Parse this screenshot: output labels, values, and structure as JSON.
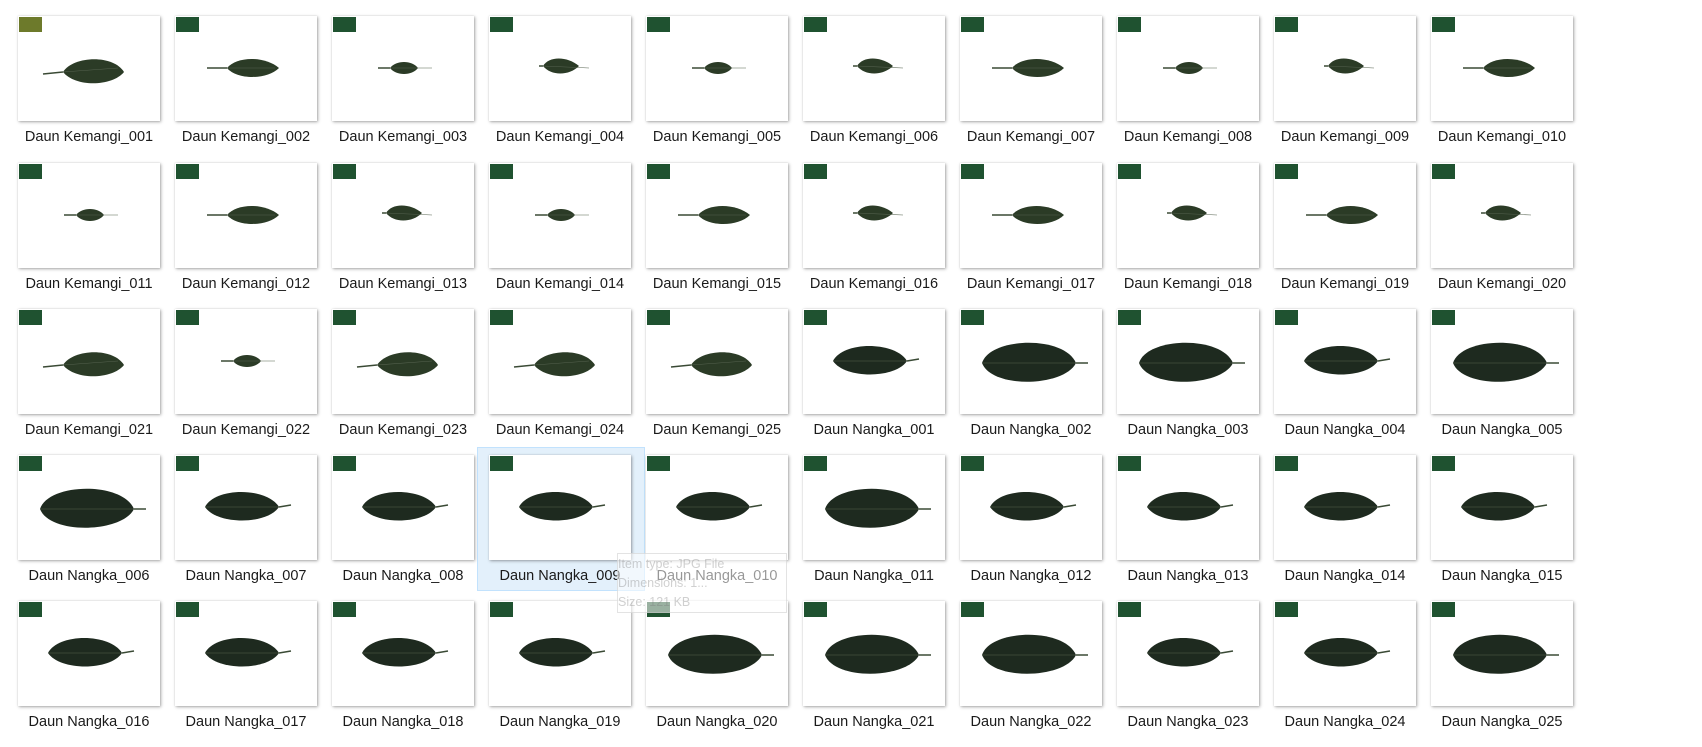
{
  "explorer": {
    "items": [
      {
        "name": "Daun Kemangi_001",
        "leaf": "k1",
        "badge": "olive"
      },
      {
        "name": "Daun Kemangi_002",
        "leaf": "k2",
        "badge": "green"
      },
      {
        "name": "Daun Kemangi_003",
        "leaf": "k3",
        "badge": "green"
      },
      {
        "name": "Daun Kemangi_004",
        "leaf": "k4",
        "badge": "green"
      },
      {
        "name": "Daun Kemangi_005",
        "leaf": "k3",
        "badge": "green"
      },
      {
        "name": "Daun Kemangi_006",
        "leaf": "k4",
        "badge": "green"
      },
      {
        "name": "Daun Kemangi_007",
        "leaf": "k2",
        "badge": "green"
      },
      {
        "name": "Daun Kemangi_008",
        "leaf": "k3",
        "badge": "green"
      },
      {
        "name": "Daun Kemangi_009",
        "leaf": "k4",
        "badge": "green"
      },
      {
        "name": "Daun Kemangi_010",
        "leaf": "k2",
        "badge": "green"
      },
      {
        "name": "Daun Kemangi_011",
        "leaf": "k3",
        "badge": "green"
      },
      {
        "name": "Daun Kemangi_012",
        "leaf": "k2",
        "badge": "green"
      },
      {
        "name": "Daun Kemangi_013",
        "leaf": "k4",
        "badge": "green"
      },
      {
        "name": "Daun Kemangi_014",
        "leaf": "k3",
        "badge": "green"
      },
      {
        "name": "Daun Kemangi_015",
        "leaf": "k2",
        "badge": "green"
      },
      {
        "name": "Daun Kemangi_016",
        "leaf": "k4",
        "badge": "green"
      },
      {
        "name": "Daun Kemangi_017",
        "leaf": "k2",
        "badge": "green"
      },
      {
        "name": "Daun Kemangi_018",
        "leaf": "k4",
        "badge": "green"
      },
      {
        "name": "Daun Kemangi_019",
        "leaf": "k2",
        "badge": "green"
      },
      {
        "name": "Daun Kemangi_020",
        "leaf": "k4",
        "badge": "green"
      },
      {
        "name": "Daun Kemangi_021",
        "leaf": "k1",
        "badge": "green"
      },
      {
        "name": "Daun Kemangi_022",
        "leaf": "k3",
        "badge": "green"
      },
      {
        "name": "Daun Kemangi_023",
        "leaf": "k1",
        "badge": "green"
      },
      {
        "name": "Daun Kemangi_024",
        "leaf": "k1",
        "badge": "green"
      },
      {
        "name": "Daun Kemangi_025",
        "leaf": "k1",
        "badge": "green"
      },
      {
        "name": "Daun Nangka_001",
        "leaf": "n1",
        "badge": "green"
      },
      {
        "name": "Daun Nangka_002",
        "leaf": "n2",
        "badge": "green"
      },
      {
        "name": "Daun Nangka_003",
        "leaf": "n2",
        "badge": "green"
      },
      {
        "name": "Daun Nangka_004",
        "leaf": "n1",
        "badge": "green"
      },
      {
        "name": "Daun Nangka_005",
        "leaf": "n2",
        "badge": "green"
      },
      {
        "name": "Daun Nangka_006",
        "leaf": "n2",
        "badge": "green"
      },
      {
        "name": "Daun Nangka_007",
        "leaf": "n1",
        "badge": "green"
      },
      {
        "name": "Daun Nangka_008",
        "leaf": "n1",
        "badge": "green"
      },
      {
        "name": "Daun Nangka_009",
        "leaf": "n1",
        "badge": "green",
        "selected": true
      },
      {
        "name": "Daun Nangka_010",
        "leaf": "n1",
        "badge": "green"
      },
      {
        "name": "Daun Nangka_011",
        "leaf": "n2",
        "badge": "green"
      },
      {
        "name": "Daun Nangka_012",
        "leaf": "n1",
        "badge": "green"
      },
      {
        "name": "Daun Nangka_013",
        "leaf": "n1",
        "badge": "green"
      },
      {
        "name": "Daun Nangka_014",
        "leaf": "n1",
        "badge": "green"
      },
      {
        "name": "Daun Nangka_015",
        "leaf": "n1",
        "badge": "green"
      },
      {
        "name": "Daun Nangka_016",
        "leaf": "n1",
        "badge": "green"
      },
      {
        "name": "Daun Nangka_017",
        "leaf": "n1",
        "badge": "green"
      },
      {
        "name": "Daun Nangka_018",
        "leaf": "n1",
        "badge": "green"
      },
      {
        "name": "Daun Nangka_019",
        "leaf": "n1",
        "badge": "green"
      },
      {
        "name": "Daun Nangka_020",
        "leaf": "n2",
        "badge": "green"
      },
      {
        "name": "Daun Nangka_021",
        "leaf": "n2",
        "badge": "green"
      },
      {
        "name": "Daun Nangka_022",
        "leaf": "n2",
        "badge": "green"
      },
      {
        "name": "Daun Nangka_023",
        "leaf": "n1",
        "badge": "green"
      },
      {
        "name": "Daun Nangka_024",
        "leaf": "n1",
        "badge": "green"
      },
      {
        "name": "Daun Nangka_025",
        "leaf": "n2",
        "badge": "green"
      }
    ]
  },
  "tooltip": {
    "item_type": "Item type: JPG File",
    "dimensions": "Dimensions: 1...",
    "size": "Size: 121 KB"
  },
  "colors": {
    "leaf_dark": "#1e2a1f",
    "leaf_olive": "#2b3b26",
    "badge_green": "#1f5230",
    "badge_olive": "#6d7a2b"
  }
}
